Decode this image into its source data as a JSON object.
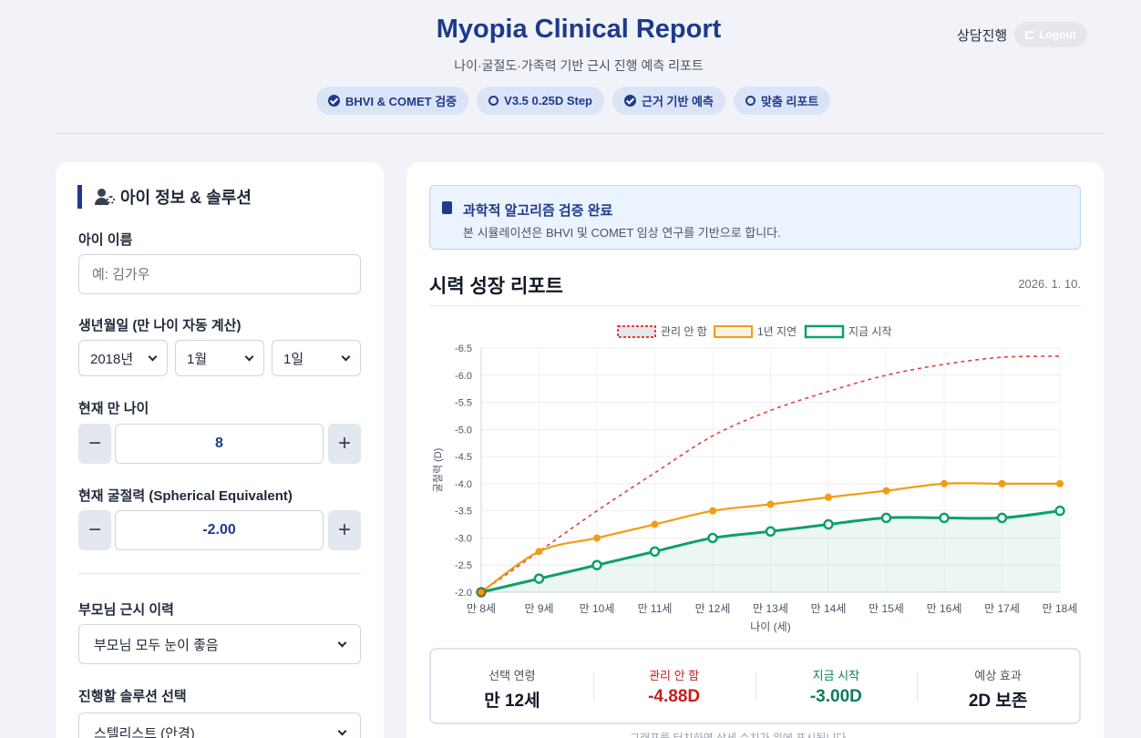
{
  "header": {
    "title": "Myopia Clinical Report",
    "subtitle": "나이·굴절도·가족력 기반 근시 진행 예측 리포트",
    "badges": [
      "BHVI & COMET 검증",
      "V3.5 0.25D Step",
      "근거 기반 예측",
      "맞춤 리포트"
    ],
    "consult_label": "상담진행",
    "logout_label": "Logout"
  },
  "left_panel": {
    "title": "아이 정보 & 솔루션",
    "name_label": "아이 이름",
    "name_placeholder": "예: 김가우",
    "birth_label": "생년월일 (만 나이 자동 계산)",
    "birth_year": "2018년",
    "birth_month": "1월",
    "birth_day": "1일",
    "age_label": "현재 만 나이",
    "age_value": "8",
    "se_label": "현재 굴절력 (Spherical Equivalent)",
    "se_value": "-2.00",
    "minus": "−",
    "plus": "+",
    "parent_label": "부모님 근시 이력",
    "parent_value": "부모님 모두 눈이 좋음",
    "solution_label": "진행할 솔루션 선택",
    "solution_value": "스텔리스트 (안경)"
  },
  "right_panel": {
    "verify_title": "과학적 알고리즘 검증 완료",
    "verify_desc": "본 시뮬레이션은 BHVI 및 COMET 임상 연구를 기반으로 합니다.",
    "report_title": "시력 성장 리포트",
    "report_date": "2026. 1. 10.",
    "summary": [
      {
        "label": "선택 연령",
        "value": "만 12세",
        "color": "#111827",
        "label_color": "#4b5563"
      },
      {
        "label": "관리 안 함",
        "value": "-4.88D",
        "color": "#c81e1e",
        "label_color": "#c81e1e"
      },
      {
        "label": "지금 시작",
        "value": "-3.00D",
        "color": "#0e7c5a",
        "label_color": "#0e7c5a"
      },
      {
        "label": "예상 효과",
        "value": "2D 보존",
        "color": "#111827",
        "label_color": "#4b5563"
      }
    ],
    "hint": "그래프를 터치하면 상세 수치가 위에 표시됩니다."
  },
  "chart_data": {
    "type": "line",
    "categories": [
      "만 8세",
      "만 9세",
      "만 10세",
      "만 11세",
      "만 12세",
      "만 13세",
      "만 14세",
      "만 15세",
      "만 16세",
      "만 17세",
      "만 18세"
    ],
    "series": [
      {
        "name": "관리 안 함",
        "color": "#e53e3e",
        "style": "dashed",
        "values": [
          -2.0,
          -2.75,
          -3.5,
          -4.2,
          -4.88,
          -5.35,
          -5.7,
          -6.0,
          -6.2,
          -6.33,
          -6.35
        ]
      },
      {
        "name": "1년 지연",
        "color": "#f39c12",
        "style": "solid",
        "values": [
          -2.0,
          -2.75,
          -3.0,
          -3.25,
          -3.5,
          -3.62,
          -3.75,
          -3.87,
          -4.0,
          -4.0,
          -4.0
        ]
      },
      {
        "name": "지금 시작",
        "color": "#0e9f6e",
        "style": "solid-fill",
        "values": [
          -2.0,
          -2.25,
          -2.5,
          -2.75,
          -3.0,
          -3.12,
          -3.25,
          -3.37,
          -3.37,
          -3.37,
          -3.5
        ]
      }
    ],
    "yticks": [
      "-6.5",
      "-6.0",
      "-5.5",
      "-5.0",
      "-4.5",
      "-4.0",
      "-3.5",
      "-3.0",
      "-2.5",
      "-2.0"
    ],
    "ylim": [
      -2.0,
      -6.5
    ],
    "ylabel": "굴절력 (D)",
    "xlabel": "나이 (세)",
    "legend_position": "top-center",
    "grid": true
  }
}
